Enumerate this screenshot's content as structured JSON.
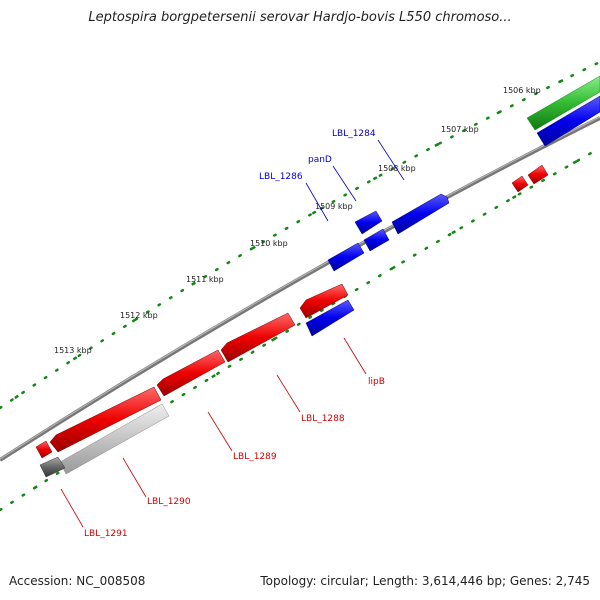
{
  "title": "Leptospira borgpetersenii serovar Hardjo-bovis L550 chromoso...",
  "footer": {
    "accession": "Accession: NC_008508",
    "summary": "Topology: circular; Length: 3,614,446 bp; Genes: 2,745"
  },
  "ticks": [
    "1506 kbp",
    "1507 kbp",
    "1508 kbp",
    "1509 kbp",
    "1510 kbp",
    "1511 kbp",
    "1512 kbp",
    "1513 kbp"
  ],
  "gene_labels": {
    "LBL_1284": "LBL_1284",
    "panD": "panD",
    "LBL_1286": "LBL_1286",
    "lipB": "lipB",
    "LBL_1288": "LBL_1288",
    "LBL_1289": "LBL_1289",
    "LBL_1290": "LBL_1290",
    "LBL_1291": "LBL_1291"
  },
  "colors": {
    "forward_cds": "#0000ee",
    "reverse_cds": "#ee0000",
    "green_feature": "#33bb33",
    "pseudo_feature": "#bbbbbb",
    "backbone": "#777777",
    "tick": "#118811",
    "blue_label": "#0000cc",
    "red_label": "#cc0000"
  }
}
